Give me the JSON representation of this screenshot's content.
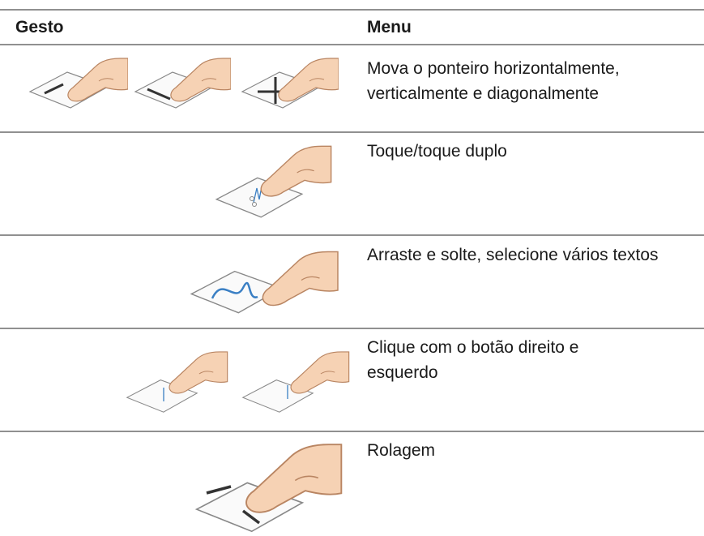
{
  "table": {
    "header": [
      "Gesto",
      "Menu"
    ],
    "rows": [
      [
        "Mova o ponteiro horizontalmente, verticalmente e diagonalmente"
      ],
      [
        "Toque/toque duplo"
      ],
      [
        "Arraste e solte, selecione vários textos"
      ],
      [
        "Clique com o botão direito e esquerdo"
      ],
      [
        "Rolagem"
      ]
    ]
  }
}
